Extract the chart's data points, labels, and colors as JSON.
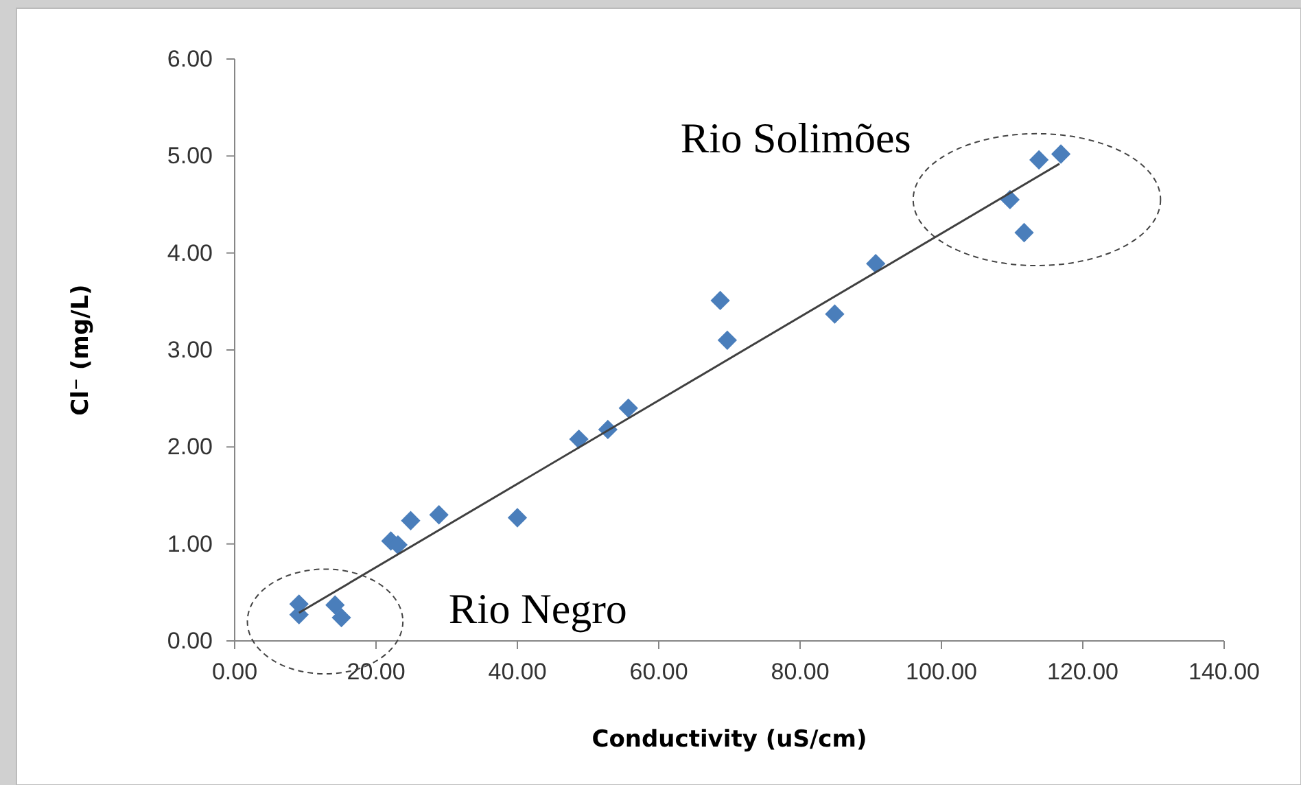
{
  "chart_data": {
    "type": "scatter",
    "xlabel": "Conductivity (uS/cm)",
    "ylabel": "Cl⁻ (mg/L)",
    "xlim": [
      0,
      140
    ],
    "xticks": [
      {
        "value": 0,
        "label": "0.00"
      },
      {
        "value": 20,
        "label": "20.00"
      },
      {
        "value": 40,
        "label": "40.00"
      },
      {
        "value": 60,
        "label": "60.00"
      },
      {
        "value": 80,
        "label": "80.00"
      },
      {
        "value": 100,
        "label": "100.00"
      },
      {
        "value": 120,
        "label": "120.00"
      },
      {
        "value": 140,
        "label": "140.00"
      }
    ],
    "ylim": [
      0,
      6
    ],
    "yticks": [
      {
        "value": 0,
        "label": "0.00"
      },
      {
        "value": 1,
        "label": "1.00"
      },
      {
        "value": 2,
        "label": "2.00"
      },
      {
        "value": 3,
        "label": "3.00"
      },
      {
        "value": 4,
        "label": "4.00"
      },
      {
        "value": 5,
        "label": "5.00"
      },
      {
        "value": 6,
        "label": "6.00"
      }
    ],
    "grid": false,
    "series": [
      {
        "marker": "diamond",
        "color": "#4a7ebb",
        "x": [
          9.1,
          9.1,
          14.2,
          15.1,
          22.1,
          23.1,
          24.9,
          28.9,
          40.0,
          48.7,
          52.8,
          55.7,
          68.7,
          69.7,
          84.9,
          90.7,
          109.7,
          111.7,
          113.8,
          116.9
        ],
        "values": [
          0.38,
          0.27,
          0.37,
          0.24,
          1.03,
          0.99,
          1.24,
          1.3,
          1.27,
          2.08,
          2.18,
          2.4,
          3.51,
          3.1,
          3.37,
          3.89,
          4.55,
          4.21,
          4.96,
          5.02
        ]
      },
      {
        "type": "line",
        "color": "#404040",
        "x": [
          9.1,
          116.7
        ],
        "values": [
          0.29,
          4.92
        ]
      }
    ],
    "annotations": [
      "Rio Solimões",
      "Rio Negro"
    ]
  }
}
